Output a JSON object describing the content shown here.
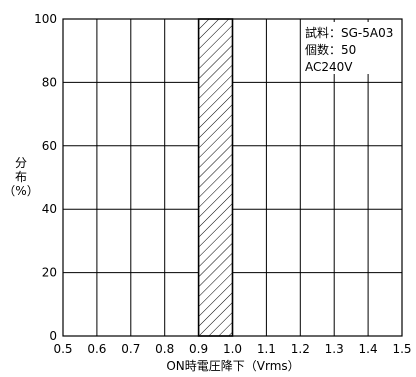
{
  "chart_data": {
    "type": "bar",
    "title": "",
    "xlabel": "ON時電圧降下（Vrms）",
    "ylabel": "分布（%）",
    "ylabel_parts": [
      "分",
      "布",
      "（%）"
    ],
    "xlim": [
      0.5,
      1.5
    ],
    "ylim": [
      0,
      100
    ],
    "xticks": [
      "0.5",
      "0.6",
      "0.7",
      "0.8",
      "0.9",
      "1.0",
      "1.1",
      "1.2",
      "1.3",
      "1.4",
      "1.5"
    ],
    "yticks": [
      "0",
      "20",
      "40",
      "60",
      "80",
      "100"
    ],
    "grid": true,
    "bars": [
      {
        "x_start": 0.9,
        "x_end": 1.0,
        "value": 100,
        "pattern": "diagonal-hatch"
      }
    ],
    "annotations": [
      "試料：SG-5A03",
      "個数：50",
      "AC240V"
    ]
  }
}
